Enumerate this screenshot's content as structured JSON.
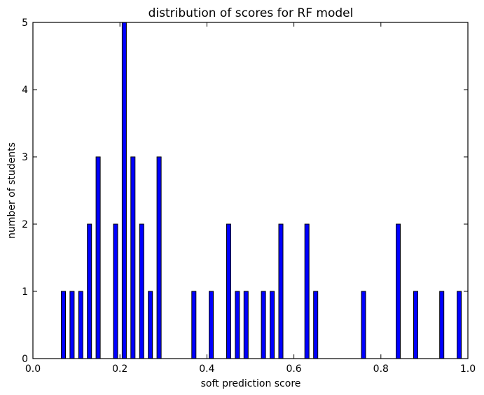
{
  "chart_data": {
    "type": "bar",
    "title": "distribution of scores for RF model",
    "xlabel": "soft prediction score",
    "ylabel": "number of students",
    "xlim": [
      0.0,
      1.0
    ],
    "ylim": [
      0,
      5
    ],
    "xticks": [
      "0.0",
      "0.2",
      "0.4",
      "0.6",
      "0.8",
      "1.0"
    ],
    "yticks": [
      "0",
      "1",
      "2",
      "3",
      "4",
      "5"
    ],
    "grid": false,
    "bar_color": "#0000ff",
    "bins": [
      {
        "x": 0.07,
        "count": 1
      },
      {
        "x": 0.09,
        "count": 1
      },
      {
        "x": 0.11,
        "count": 1
      },
      {
        "x": 0.13,
        "count": 2
      },
      {
        "x": 0.15,
        "count": 3
      },
      {
        "x": 0.19,
        "count": 2
      },
      {
        "x": 0.21,
        "count": 5
      },
      {
        "x": 0.23,
        "count": 3
      },
      {
        "x": 0.25,
        "count": 2
      },
      {
        "x": 0.27,
        "count": 1
      },
      {
        "x": 0.29,
        "count": 3
      },
      {
        "x": 0.37,
        "count": 1
      },
      {
        "x": 0.41,
        "count": 1
      },
      {
        "x": 0.45,
        "count": 2
      },
      {
        "x": 0.47,
        "count": 1
      },
      {
        "x": 0.49,
        "count": 1
      },
      {
        "x": 0.53,
        "count": 1
      },
      {
        "x": 0.55,
        "count": 1
      },
      {
        "x": 0.57,
        "count": 2
      },
      {
        "x": 0.63,
        "count": 2
      },
      {
        "x": 0.65,
        "count": 1
      },
      {
        "x": 0.76,
        "count": 1
      },
      {
        "x": 0.84,
        "count": 2
      },
      {
        "x": 0.88,
        "count": 1
      },
      {
        "x": 0.94,
        "count": 1
      },
      {
        "x": 0.98,
        "count": 1
      }
    ]
  }
}
